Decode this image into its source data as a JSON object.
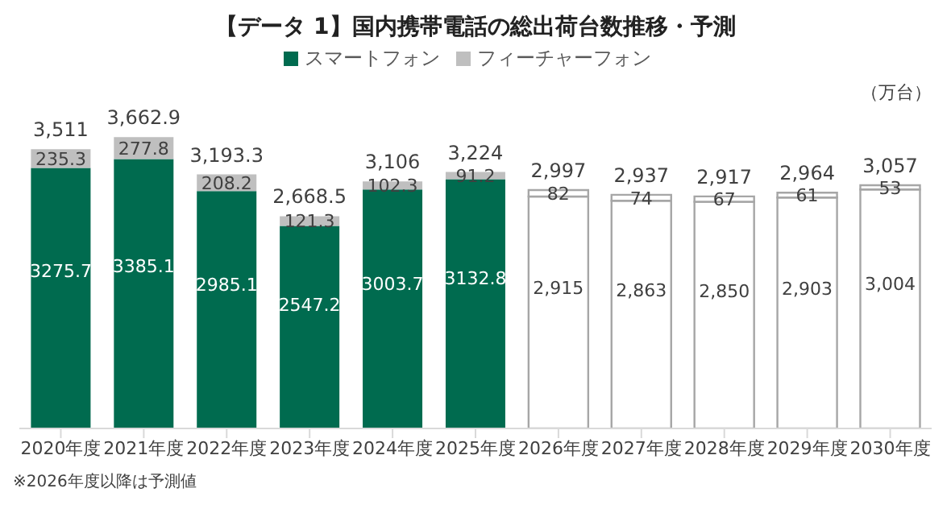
{
  "chart_data": {
    "type": "bar",
    "title": "【データ 1】国内携帯電話の総出荷台数推移・予測",
    "ylabel": "（万台）",
    "categories": [
      "2020年度",
      "2021年度",
      "2022年度",
      "2023年度",
      "2024年度",
      "2025年度",
      "2026年度",
      "2027年度",
      "2028年度",
      "2029年度",
      "2030年度"
    ],
    "stacked": true,
    "legend": "top",
    "data_labels": true,
    "series": [
      {
        "name": "スマートフォン",
        "color": "#006b4f",
        "colors": [
          "#006b4f",
          "#006b4f",
          "#006b4f",
          "#006b4f",
          "#006b4f",
          "#006b4f",
          "#ffffff",
          "#ffffff",
          "#ffffff",
          "#ffffff",
          "#ffffff"
        ],
        "values": [
          3275.7,
          3385.1,
          2985.1,
          2547.2,
          3003.7,
          3132.8,
          2915,
          2863,
          2850,
          2903,
          3004
        ],
        "value_labels": [
          "3275.7",
          "3385.1",
          "2985.1",
          "2547.2",
          "3003.7",
          "3132.8",
          "2,915",
          "2,863",
          "2,850",
          "2,903",
          "3,004"
        ]
      },
      {
        "name": "フィーチャーフォン",
        "color": "#bfbfbf",
        "colors": [
          "#bfbfbf",
          "#bfbfbf",
          "#bfbfbf",
          "#bfbfbf",
          "#bfbfbf",
          "#bfbfbf",
          "#ffffff",
          "#ffffff",
          "#ffffff",
          "#ffffff",
          "#ffffff"
        ],
        "values": [
          235.3,
          277.8,
          208.2,
          121.3,
          102.3,
          91.2,
          82,
          74,
          67,
          61,
          53
        ],
        "value_labels": [
          "235.3",
          "277.8",
          "208.2",
          "121.3",
          "102.3",
          "91.2",
          "82",
          "74",
          "67",
          "61",
          "53"
        ]
      }
    ],
    "totals": [
      "3,511",
      "3,662.9",
      "3,193.3",
      "2,668.5",
      "3,106",
      "3,224",
      "2,997",
      "2,937",
      "2,917",
      "2,964",
      "3,057"
    ],
    "annotations": [
      "※2026年度以降は予測値"
    ]
  }
}
